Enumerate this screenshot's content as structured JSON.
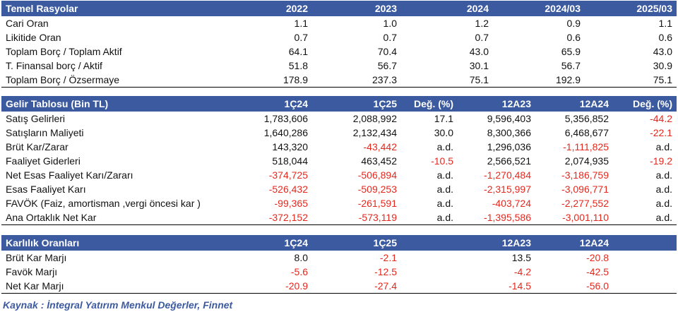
{
  "ratios": {
    "header": [
      "Temel Rasyolar",
      "2022",
      "2023",
      "2024",
      "2024/03",
      "2025/03"
    ],
    "rows": [
      [
        "Cari Oran",
        "1.1",
        "1.0",
        "1.2",
        "0.9",
        "1.1"
      ],
      [
        "Likitide Oran",
        "0.7",
        "0.7",
        "0.7",
        "0.6",
        "0.6"
      ],
      [
        "Toplam Borç / Toplam Aktif",
        "64.1",
        "70.4",
        "43.0",
        "65.9",
        "43.0"
      ],
      [
        "T. Finansal borç / Aktif",
        "51.8",
        "56.7",
        "30.1",
        "56.7",
        "30.9"
      ],
      [
        "Toplam Borç / Özsermaye",
        "178.9",
        "237.3",
        "75.1",
        "192.9",
        "75.1"
      ]
    ]
  },
  "income": {
    "header": [
      "Gelir Tablosu (Bin TL)",
      "1Ç24",
      "1Ç25",
      "Değ. (%)",
      "12A23",
      "12A24",
      "Değ. (%)"
    ],
    "rows": [
      [
        "Satış Gelirleri",
        "1,783,606",
        "2,088,992",
        "17.1",
        "9,596,403",
        "5,356,852",
        "-44.2"
      ],
      [
        "Satışların Maliyeti",
        "1,640,286",
        "2,132,434",
        "30.0",
        "8,300,366",
        "6,468,677",
        "-22.1"
      ],
      [
        "Brüt Kar/Zarar",
        "143,320",
        "-43,442",
        "a.d.",
        "1,296,036",
        "-1,111,825",
        "a.d."
      ],
      [
        "Faaliyet Giderleri",
        "518,044",
        "463,452",
        "-10.5",
        "2,566,521",
        "2,074,935",
        "-19.2"
      ],
      [
        "Net Esas Faaliyet Karı/Zararı",
        "-374,725",
        "-506,894",
        "a.d.",
        "-1,270,484",
        "-3,186,759",
        "a.d."
      ],
      [
        "Esas Faaliyet Karı",
        "-526,432",
        "-509,253",
        "a.d.",
        "-2,315,997",
        "-3,096,771",
        "a.d."
      ],
      [
        "FAVÖK (Faiz, amortisman ,vergi öncesi kar )",
        "-99,365",
        "-261,591",
        "a.d.",
        "-403,724",
        "-2,277,552",
        "a.d."
      ],
      [
        "Ana Ortaklık Net Kar",
        "-372,152",
        "-573,119",
        "a.d.",
        "-1,395,586",
        "-3,001,110",
        "a.d."
      ]
    ]
  },
  "margins": {
    "header": [
      "Karlılık Oranları",
      "1Ç24",
      "1Ç25",
      "",
      "12A23",
      "12A24",
      ""
    ],
    "rows": [
      [
        "Brüt Kar Marjı",
        "8.0",
        "-2.1",
        "",
        "13.5",
        "-20.8",
        ""
      ],
      [
        "Favök Marjı",
        "-5.6",
        "-12.5",
        "",
        "-4.2",
        "-42.5",
        ""
      ],
      [
        "Net Kar Marjı",
        "-20.9",
        "-27.4",
        "",
        "-14.5",
        "-56.0",
        ""
      ]
    ]
  },
  "source_text": "Kaynak : İntegral Yatırım Menkul Değerler, Finnet",
  "colors": {
    "header_bg": "#3C5AA0",
    "negative": "#E5281E",
    "source_text": "#3C5AA0"
  }
}
